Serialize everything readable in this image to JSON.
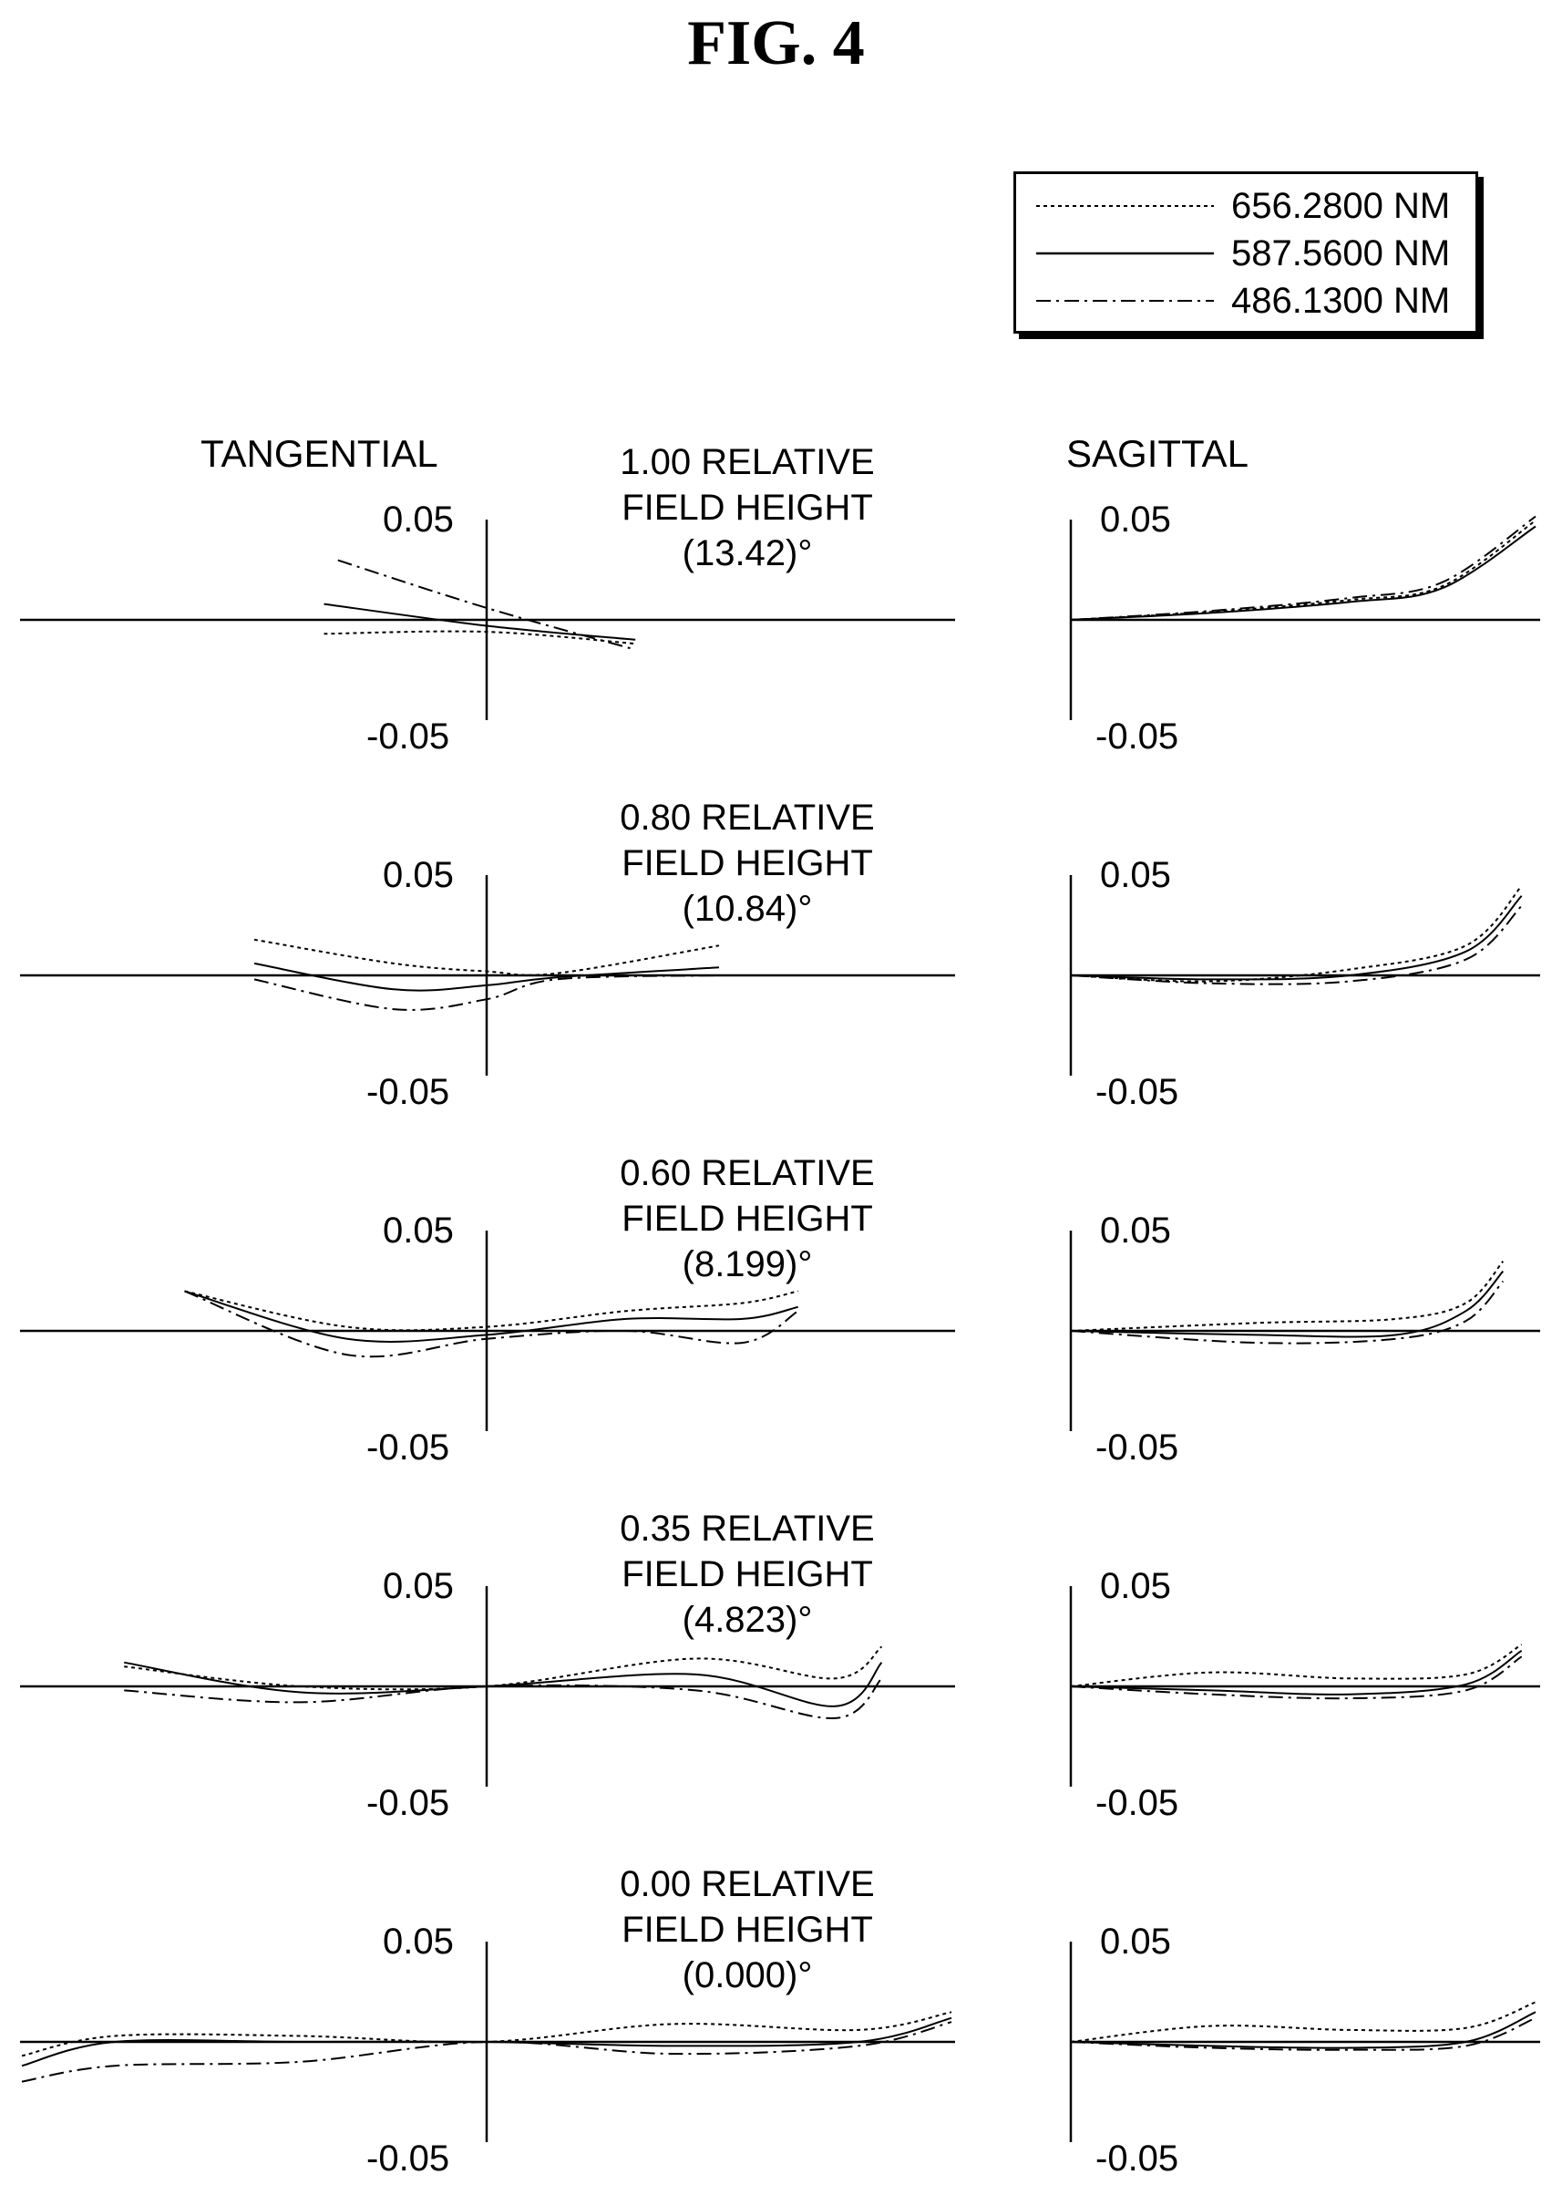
{
  "figure_title": "FIG. 4",
  "column_titles": {
    "tangential": "TANGENTIAL",
    "sagittal": "SAGITTAL"
  },
  "legend": [
    {
      "label": "656.2800 NM",
      "style": "dotted"
    },
    {
      "label": "587.5600 NM",
      "style": "solid"
    },
    {
      "label": "486.1300 NM",
      "style": "dash-dot"
    }
  ],
  "fields": [
    {
      "line1": "1.00 RELATIVE",
      "line2": "FIELD HEIGHT",
      "line3": "(13.42)°",
      "t_top": "0.05",
      "t_bottom": "-0.05",
      "s_top": "0.05",
      "s_bottom": "-0.05"
    },
    {
      "line1": "0.80 RELATIVE",
      "line2": "FIELD HEIGHT",
      "line3": "(10.84)°",
      "t_top": "0.05",
      "t_bottom": "-0.05",
      "s_top": "0.05",
      "s_bottom": "-0.05"
    },
    {
      "line1": "0.60 RELATIVE",
      "line2": "FIELD HEIGHT",
      "line3": "(8.199)°",
      "t_top": "0.05",
      "t_bottom": "-0.05",
      "s_top": "0.05",
      "s_bottom": "-0.05"
    },
    {
      "line1": "0.35 RELATIVE",
      "line2": "FIELD HEIGHT",
      "line3": "(4.823)°",
      "t_top": "0.05",
      "t_bottom": "-0.05",
      "s_top": "0.05",
      "s_bottom": "-0.05"
    },
    {
      "line1": "0.00 RELATIVE",
      "line2": "FIELD HEIGHT",
      "line3": "(0.000)°",
      "t_top": "0.05",
      "t_bottom": "-0.05",
      "s_top": "0.05",
      "s_bottom": "-0.05"
    }
  ],
  "chart_data": {
    "type": "line",
    "description_axes": "transverse ray aberration vs normalized pupil coordinate",
    "ylim": [
      -0.05,
      0.05
    ],
    "series_names": [
      "656.2800 NM",
      "587.5600 NM",
      "486.1300 NM"
    ],
    "panels": [
      {
        "field": "1.00",
        "kind": "tangential",
        "series": [
          {
            "name": "656.2800 NM",
            "x": [
              -0.35,
              0,
              0.32
            ],
            "y": [
              -0.007,
              -0.006,
              -0.012
            ]
          },
          {
            "name": "587.5600 NM",
            "x": [
              -0.35,
              0,
              0.32
            ],
            "y": [
              0.008,
              -0.003,
              -0.01
            ]
          },
          {
            "name": "486.1300 NM",
            "x": [
              -0.32,
              0,
              0.32
            ],
            "y": [
              0.03,
              0.006,
              -0.015
            ]
          }
        ]
      },
      {
        "field": "1.00",
        "kind": "sagittal",
        "series": [
          {
            "name": "656.2800 NM",
            "x": [
              0,
              0.3,
              0.6,
              0.8,
              1.0
            ],
            "y": [
              0,
              0.004,
              0.01,
              0.017,
              0.05
            ]
          },
          {
            "name": "587.5600 NM",
            "x": [
              0,
              0.3,
              0.6,
              0.8,
              1.0
            ],
            "y": [
              0,
              0.0035,
              0.009,
              0.016,
              0.047
            ]
          },
          {
            "name": "486.1300 NM",
            "x": [
              0,
              0.3,
              0.6,
              0.8,
              1.0
            ],
            "y": [
              0,
              0.0045,
              0.011,
              0.019,
              0.052
            ]
          }
        ]
      },
      {
        "field": "0.80",
        "kind": "tangential",
        "series": [
          {
            "name": "656.2800 NM",
            "x": [
              -0.5,
              -0.2,
              0,
              0.15,
              0.5
            ],
            "y": [
              0.018,
              0.006,
              0.002,
              0.001,
              0.015
            ]
          },
          {
            "name": "587.5600 NM",
            "x": [
              -0.5,
              -0.2,
              0,
              0.15,
              0.5
            ],
            "y": [
              0.006,
              -0.007,
              -0.005,
              -0.001,
              0.004
            ]
          },
          {
            "name": "486.1300 NM",
            "x": [
              -0.5,
              -0.2,
              0,
              0.15,
              0.5
            ],
            "y": [
              -0.002,
              -0.017,
              -0.012,
              -0.002,
              0.0
            ]
          }
        ]
      },
      {
        "field": "0.80",
        "kind": "sagittal",
        "series": [
          {
            "name": "656.2800 NM",
            "x": [
              0,
              0.3,
              0.6,
              0.85,
              0.97
            ],
            "y": [
              0,
              -0.003,
              0.003,
              0.015,
              0.045
            ]
          },
          {
            "name": "587.5600 NM",
            "x": [
              0,
              0.3,
              0.6,
              0.85,
              0.97
            ],
            "y": [
              0,
              -0.002,
              0.0,
              0.012,
              0.04
            ]
          },
          {
            "name": "486.1300 NM",
            "x": [
              0,
              0.3,
              0.6,
              0.85,
              0.97
            ],
            "y": [
              0,
              -0.004,
              -0.003,
              0.008,
              0.035
            ]
          }
        ]
      },
      {
        "field": "0.60",
        "kind": "tangential",
        "series": [
          {
            "name": "656.2800 NM",
            "x": [
              -0.65,
              -0.3,
              0,
              0.3,
              0.55,
              0.67
            ],
            "y": [
              0.02,
              0.002,
              0.002,
              0.01,
              0.014,
              0.02
            ]
          },
          {
            "name": "587.5600 NM",
            "x": [
              -0.65,
              -0.3,
              0,
              0.3,
              0.55,
              0.67
            ],
            "y": [
              0.02,
              -0.004,
              -0.002,
              0.006,
              0.006,
              0.012
            ]
          },
          {
            "name": "486.1300 NM",
            "x": [
              -0.65,
              -0.3,
              0,
              0.3,
              0.55,
              0.67
            ],
            "y": [
              0.02,
              -0.012,
              -0.004,
              0.0,
              -0.006,
              0.01
            ]
          }
        ]
      },
      {
        "field": "0.60",
        "kind": "sagittal",
        "series": [
          {
            "name": "656.2800 NM",
            "x": [
              0,
              0.4,
              0.7,
              0.85,
              0.93
            ],
            "y": [
              0,
              0.004,
              0.006,
              0.014,
              0.035
            ]
          },
          {
            "name": "587.5600 NM",
            "x": [
              0,
              0.4,
              0.7,
              0.85,
              0.93
            ],
            "y": [
              0,
              -0.002,
              -0.002,
              0.01,
              0.03
            ]
          },
          {
            "name": "486.1300 NM",
            "x": [
              0,
              0.4,
              0.7,
              0.85,
              0.93
            ],
            "y": [
              0,
              -0.006,
              -0.004,
              0.005,
              0.025
            ]
          }
        ]
      },
      {
        "field": "0.35",
        "kind": "tangential",
        "series": [
          {
            "name": "656.2800 NM",
            "x": [
              -0.78,
              -0.4,
              0,
              0.45,
              0.75,
              0.85
            ],
            "y": [
              0.01,
              0.0,
              0.0,
              0.014,
              0.004,
              0.02
            ]
          },
          {
            "name": "587.5600 NM",
            "x": [
              -0.78,
              -0.4,
              0,
              0.45,
              0.75,
              0.85
            ],
            "y": [
              0.012,
              -0.003,
              0.0,
              0.006,
              -0.01,
              0.012
            ]
          },
          {
            "name": "486.1300 NM",
            "x": [
              -0.78,
              -0.4,
              0,
              0.45,
              0.75,
              0.85
            ],
            "y": [
              -0.002,
              -0.008,
              0.0,
              -0.002,
              -0.016,
              0.004
            ]
          }
        ]
      },
      {
        "field": "0.35",
        "kind": "sagittal",
        "series": [
          {
            "name": "656.2800 NM",
            "x": [
              0,
              0.3,
              0.6,
              0.85,
              0.97
            ],
            "y": [
              0,
              0.007,
              0.004,
              0.006,
              0.021
            ]
          },
          {
            "name": "587.5600 NM",
            "x": [
              0,
              0.3,
              0.6,
              0.85,
              0.97
            ],
            "y": [
              0,
              -0.002,
              -0.004,
              0.001,
              0.018
            ]
          },
          {
            "name": "486.1300 NM",
            "x": [
              0,
              0.3,
              0.6,
              0.85,
              0.97
            ],
            "y": [
              0,
              -0.004,
              -0.006,
              -0.002,
              0.015
            ]
          }
        ]
      },
      {
        "field": "0.00",
        "kind": "tangential",
        "series": [
          {
            "name": "656.2800 NM",
            "x": [
              -1.0,
              -0.8,
              -0.4,
              0,
              0.4,
              0.8,
              1.0
            ],
            "y": [
              -0.007,
              0.003,
              0.003,
              0.0,
              0.009,
              0.006,
              0.015
            ]
          },
          {
            "name": "587.5600 NM",
            "x": [
              -1.0,
              -0.8,
              -0.4,
              0,
              0.4,
              0.8,
              1.0
            ],
            "y": [
              -0.012,
              0.0,
              0.0,
              0.0,
              -0.002,
              0.0,
              0.012
            ]
          },
          {
            "name": "486.1300 NM",
            "x": [
              -1.0,
              -0.8,
              -0.4,
              0,
              0.4,
              0.8,
              1.0
            ],
            "y": [
              -0.02,
              -0.012,
              -0.01,
              0.0,
              -0.006,
              -0.002,
              0.01
            ]
          }
        ]
      },
      {
        "field": "0.00",
        "kind": "sagittal",
        "series": [
          {
            "name": "656.2800 NM",
            "x": [
              0,
              0.3,
              0.6,
              0.85,
              1.0
            ],
            "y": [
              0,
              0.008,
              0.006,
              0.007,
              0.02
            ]
          },
          {
            "name": "587.5600 NM",
            "x": [
              0,
              0.3,
              0.6,
              0.85,
              1.0
            ],
            "y": [
              0,
              -0.002,
              -0.003,
              0.0,
              0.015
            ]
          },
          {
            "name": "486.1300 NM",
            "x": [
              0,
              0.3,
              0.6,
              0.85,
              1.0
            ],
            "y": [
              0,
              -0.003,
              -0.004,
              -0.002,
              0.012
            ]
          }
        ]
      }
    ]
  }
}
